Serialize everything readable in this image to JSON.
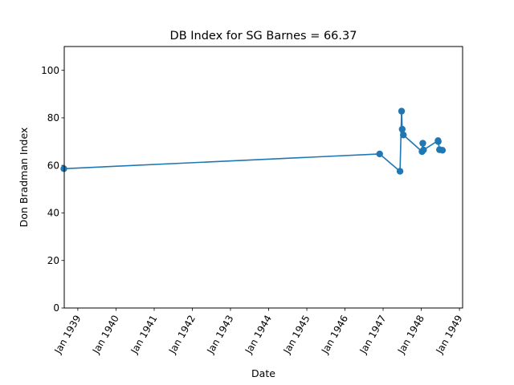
{
  "chart_data": {
    "type": "line",
    "title": "DB Index for SG Barnes = 66.37",
    "xlabel": "Date",
    "ylabel": "Don Bradman Index",
    "ylim": [
      0,
      110
    ],
    "yticks": [
      0,
      20,
      40,
      60,
      80,
      100
    ],
    "xlim": [
      "1938-08-24",
      "1949-01-31"
    ],
    "xticks": [
      {
        "date": "1939-01-01",
        "label": "Jan 1939"
      },
      {
        "date": "1940-01-01",
        "label": "Jan 1940"
      },
      {
        "date": "1941-01-01",
        "label": "Jan 1941"
      },
      {
        "date": "1942-01-01",
        "label": "Jan 1942"
      },
      {
        "date": "1943-01-01",
        "label": "Jan 1943"
      },
      {
        "date": "1944-01-01",
        "label": "Jan 1944"
      },
      {
        "date": "1945-01-01",
        "label": "Jan 1945"
      },
      {
        "date": "1946-01-01",
        "label": "Jan 1946"
      },
      {
        "date": "1947-01-01",
        "label": "Jan 1947"
      },
      {
        "date": "1948-01-01",
        "label": "Jan 1948"
      },
      {
        "date": "1949-01-01",
        "label": "Jan 1949"
      }
    ],
    "grid": false,
    "series": [
      {
        "color": "#1f77b4",
        "marker": "circle",
        "points": [
          {
            "x": "1938-08-20",
            "y": 58.6
          },
          {
            "x": "1946-11-29",
            "y": 64.8
          },
          {
            "x": "1947-06-12",
            "y": 57.5
          },
          {
            "x": "1947-06-27",
            "y": 82.8
          },
          {
            "x": "1947-07-03",
            "y": 75.2
          },
          {
            "x": "1947-07-14",
            "y": 72.8
          },
          {
            "x": "1948-01-09",
            "y": 65.8
          },
          {
            "x": "1948-01-16",
            "y": 69.3
          },
          {
            "x": "1948-01-23",
            "y": 66.5
          },
          {
            "x": "1948-06-10",
            "y": 70.4
          },
          {
            "x": "1948-06-12",
            "y": 70.0
          },
          {
            "x": "1948-06-24",
            "y": 66.6
          },
          {
            "x": "1948-07-22",
            "y": 66.37
          }
        ]
      }
    ]
  }
}
